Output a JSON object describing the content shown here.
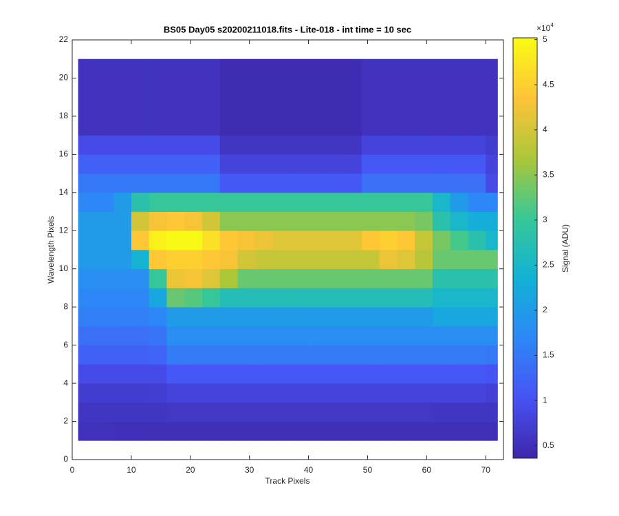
{
  "chart_data": {
    "type": "heatmap",
    "title": "BS05 Day05  s20200211018.fits - Lite-018 - int time = 10 sec",
    "x_label": "Track Pixels",
    "y_label": "Wavelength Pixels",
    "colorbar_label": "Signal (ADU)",
    "colorbar_multiplier": "×10",
    "colorbar_exponent": "4",
    "colormap": "parula",
    "x_edges": [
      1,
      4,
      7,
      10,
      13,
      16,
      19,
      22,
      25,
      28,
      31,
      34,
      37,
      40,
      43,
      46,
      49,
      52,
      55,
      58,
      61,
      64,
      67,
      70,
      72
    ],
    "y_edges": [
      1,
      2,
      3,
      4,
      5,
      6,
      7,
      8,
      9,
      10,
      11,
      12,
      13,
      14,
      15,
      16,
      17,
      18,
      19,
      20,
      21
    ],
    "values": [
      [
        5200,
        5200,
        5100,
        5100,
        5000,
        5000,
        5000,
        5000,
        5000,
        5000,
        5000,
        5000,
        5000,
        5000,
        5000,
        5000,
        5000,
        5000,
        5000,
        5000,
        5000,
        5000,
        5000,
        5000
      ],
      [
        6000,
        6000,
        6000,
        6000,
        6000,
        6200,
        6200,
        6200,
        6200,
        6200,
        6200,
        6200,
        6200,
        6200,
        6200,
        6200,
        6200,
        6200,
        6200,
        6200,
        6000,
        6000,
        6000,
        6000
      ],
      [
        7000,
        7000,
        7000,
        7000,
        7200,
        8000,
        8000,
        8000,
        8000,
        8000,
        8000,
        8000,
        8000,
        8000,
        8000,
        8000,
        8000,
        8000,
        8000,
        8000,
        8000,
        8000,
        8000,
        7500
      ],
      [
        9000,
        9000,
        9000,
        9000,
        9000,
        11000,
        11000,
        11000,
        11000,
        11000,
        11000,
        11000,
        11000,
        11000,
        11000,
        11000,
        11000,
        11000,
        11000,
        11000,
        11000,
        11000,
        11000,
        10500
      ],
      [
        12000,
        12000,
        12000,
        12000,
        12500,
        15500,
        15500,
        15500,
        15500,
        15500,
        15500,
        15500,
        15500,
        15500,
        15500,
        15500,
        15500,
        15500,
        15500,
        15500,
        15500,
        15500,
        15500,
        15000
      ],
      [
        14000,
        14000,
        14000,
        14000,
        14500,
        18000,
        18000,
        18000,
        18000,
        18000,
        18000,
        18000,
        18000,
        18000,
        18000,
        18000,
        18000,
        18000,
        18000,
        18000,
        18000,
        18000,
        18000,
        18000
      ],
      [
        16000,
        16000,
        16000,
        16000,
        17000,
        20000,
        20000,
        20000,
        20000,
        20000,
        20000,
        20000,
        20000,
        20000,
        20000,
        20000,
        20000,
        20000,
        20000,
        20000,
        22000,
        22000,
        22000,
        22000
      ],
      [
        17000,
        17000,
        17000,
        17000,
        22000,
        33000,
        32000,
        30000,
        27000,
        27000,
        27000,
        27000,
        27000,
        27000,
        27000,
        27000,
        27000,
        27000,
        27000,
        27000,
        25000,
        25000,
        25000,
        25000
      ],
      [
        18000,
        18000,
        18000,
        18000,
        30000,
        42000,
        43000,
        41000,
        37000,
        33000,
        33000,
        33000,
        33000,
        33000,
        33000,
        33000,
        33000,
        33000,
        33000,
        33000,
        28000,
        28000,
        28000,
        28000
      ],
      [
        20000,
        20000,
        20000,
        24000,
        44000,
        45000,
        45000,
        44000,
        43000,
        40000,
        39000,
        39000,
        39000,
        39000,
        39000,
        39000,
        39000,
        42000,
        41000,
        38000,
        33000,
        33000,
        33000,
        33000
      ],
      [
        20000,
        20000,
        20000,
        44000,
        49000,
        50000,
        50000,
        47000,
        44000,
        43000,
        42000,
        41000,
        41000,
        41000,
        41000,
        41000,
        44000,
        45000,
        44000,
        39000,
        34000,
        31000,
        28000,
        25000
      ],
      [
        20000,
        20000,
        20000,
        40000,
        43000,
        44000,
        43000,
        40000,
        35000,
        35000,
        35000,
        35000,
        35000,
        35000,
        35000,
        35000,
        35000,
        35000,
        35000,
        34000,
        28000,
        25000,
        23000,
        23000
      ],
      [
        17000,
        17000,
        20000,
        28000,
        30000,
        30000,
        30000,
        30000,
        30000,
        30000,
        30000,
        30000,
        30000,
        30000,
        30000,
        30000,
        30000,
        30000,
        30000,
        30000,
        25000,
        20000,
        17000,
        17000
      ],
      [
        15000,
        15000,
        15000,
        15000,
        15000,
        15000,
        15000,
        15000,
        11000,
        11000,
        11000,
        11000,
        11000,
        11000,
        11000,
        11000,
        14000,
        14000,
        14000,
        14000,
        14000,
        14000,
        14000,
        9000
      ],
      [
        12000,
        12000,
        12000,
        12000,
        12000,
        12000,
        12000,
        12000,
        8000,
        8000,
        8000,
        8000,
        8000,
        8000,
        8000,
        8000,
        11000,
        11000,
        11000,
        11000,
        11000,
        11000,
        11000,
        8000
      ],
      [
        9000,
        9000,
        9000,
        9000,
        9000,
        9000,
        9000,
        9000,
        6000,
        6000,
        6000,
        6000,
        6000,
        6000,
        6000,
        6000,
        8000,
        8000,
        8000,
        8000,
        8000,
        8000,
        8000,
        7000
      ],
      [
        5500,
        5500,
        5500,
        5500,
        5500,
        5500,
        5500,
        5500,
        4500,
        4500,
        4500,
        4500,
        4500,
        4500,
        4500,
        4500,
        5500,
        5500,
        5500,
        5500,
        5500,
        5500,
        5500,
        5500
      ],
      [
        5500,
        5500,
        5500,
        5500,
        5500,
        5500,
        5500,
        5500,
        4500,
        4500,
        4500,
        4500,
        4500,
        4500,
        4500,
        4500,
        5500,
        5500,
        5500,
        5500,
        5500,
        5500,
        5500,
        5500
      ],
      [
        5500,
        5500,
        5500,
        5500,
        5500,
        5500,
        5500,
        5500,
        4500,
        4500,
        4500,
        4500,
        4500,
        4500,
        4500,
        4500,
        5500,
        5500,
        5500,
        5500,
        5500,
        5500,
        5500,
        5500
      ],
      [
        5500,
        5500,
        5500,
        5500,
        5500,
        5500,
        5500,
        5500,
        4500,
        4500,
        4500,
        4500,
        4500,
        4500,
        4500,
        4500,
        5500,
        5500,
        5500,
        5500,
        5500,
        5500,
        5500,
        5500
      ]
    ],
    "xlim": [
      0,
      73
    ],
    "ylim": [
      0,
      22
    ],
    "xticks": [
      0,
      10,
      20,
      30,
      40,
      50,
      60,
      70
    ],
    "yticks": [
      0,
      2,
      4,
      6,
      8,
      10,
      12,
      14,
      16,
      18,
      20,
      22
    ],
    "clim": [
      3600,
      50200
    ],
    "cticks": [
      {
        "value": 5000,
        "label": "0.5"
      },
      {
        "value": 10000,
        "label": "1"
      },
      {
        "value": 15000,
        "label": "1.5"
      },
      {
        "value": 20000,
        "label": "2"
      },
      {
        "value": 25000,
        "label": "2.5"
      },
      {
        "value": 30000,
        "label": "3"
      },
      {
        "value": 35000,
        "label": "3.5"
      },
      {
        "value": 40000,
        "label": "4"
      },
      {
        "value": 45000,
        "label": "4.5"
      },
      {
        "value": 50000,
        "label": "5"
      }
    ]
  }
}
